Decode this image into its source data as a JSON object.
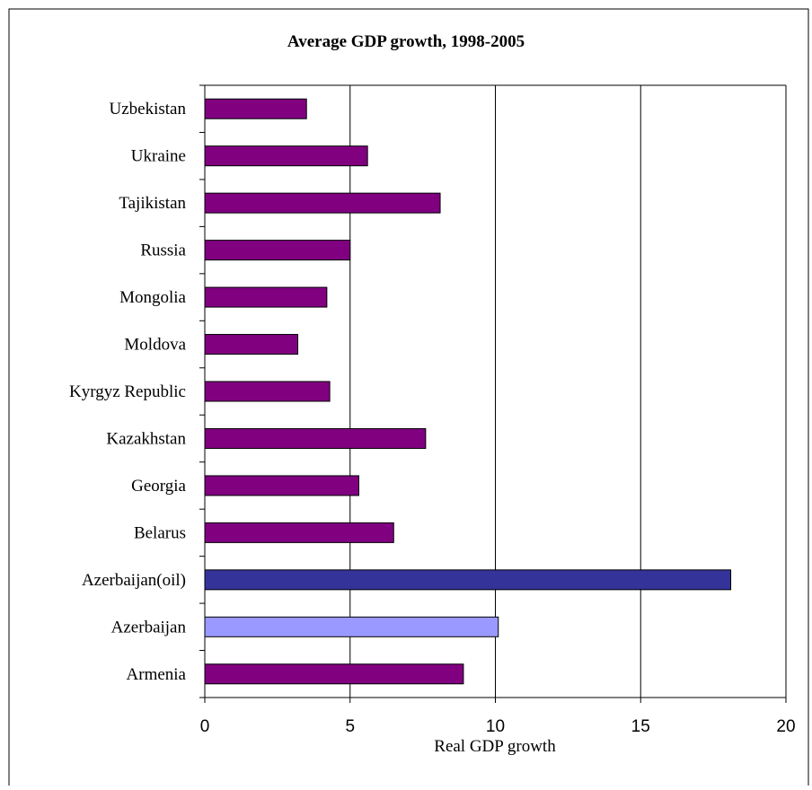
{
  "chart_data": {
    "type": "bar",
    "orientation": "horizontal",
    "title": "Average GDP growth, 1998-2005",
    "xlabel": "Real GDP growth",
    "ylabel": "",
    "xlim": [
      0,
      20
    ],
    "xticks": [
      0,
      5,
      10,
      15,
      20
    ],
    "grid": true,
    "legend": "none",
    "categories": [
      "Uzbekistan",
      "Ukraine",
      "Tajikistan",
      "Russia",
      "Mongolia",
      "Moldova",
      "Kyrgyz Republic",
      "Kazakhstan",
      "Georgia",
      "Belarus",
      "Azerbaijan(oil)",
      "Azerbaijan",
      "Armenia"
    ],
    "values": [
      3.5,
      5.6,
      8.1,
      5.0,
      4.2,
      3.2,
      4.3,
      7.6,
      5.3,
      6.5,
      18.1,
      10.1,
      8.9
    ],
    "colors": [
      "#800080",
      "#800080",
      "#800080",
      "#800080",
      "#800080",
      "#800080",
      "#800080",
      "#800080",
      "#800080",
      "#800080",
      "#333399",
      "#9999ff",
      "#800080"
    ]
  }
}
